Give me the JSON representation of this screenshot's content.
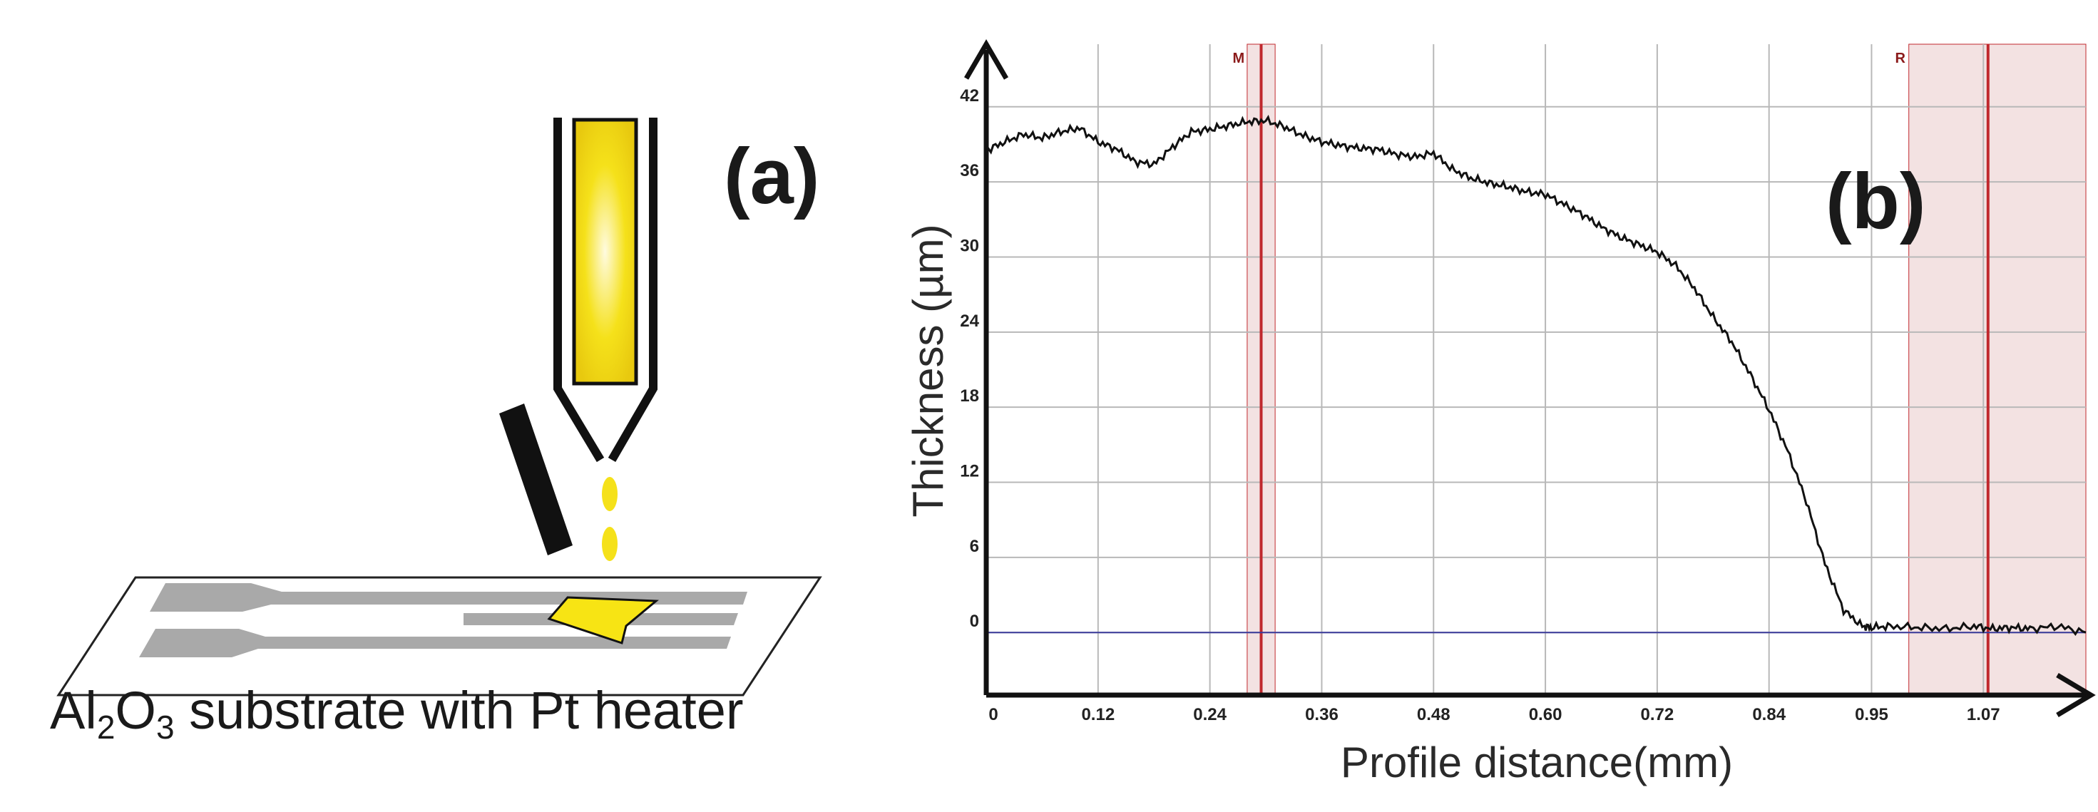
{
  "panel_a": {
    "label": "(a)",
    "caption_parts": [
      "Al",
      "2",
      "O",
      "3",
      " substrate with Pt heater"
    ]
  },
  "panel_b": {
    "label": "(b)"
  },
  "colors": {
    "profile": "#111111",
    "grid": "#b8b8b8",
    "baseline": "#3a3a9a",
    "marker_line": "#c0282d",
    "marker_band": "#f3e2e2",
    "lamp_yellow": "#f5e11a",
    "heater_grey": "#a9a9a9",
    "deposit_yellow": "#f7e414"
  },
  "chart_data": {
    "type": "line",
    "xlabel": "Profile distance(mm)",
    "ylabel": "Thickness (µm)",
    "x_ticks": [
      "0",
      "0.12",
      "0.24",
      "0.36",
      "0.48",
      "0.60",
      "0.72",
      "0.84",
      "0.95",
      "1.07"
    ],
    "y_ticks": [
      "0",
      "6",
      "12",
      "18",
      "24",
      "30",
      "36",
      "42"
    ],
    "xlim": [
      0,
      1.18
    ],
    "ylim": [
      -5,
      47
    ],
    "grid": true,
    "markers": [
      {
        "name": "M",
        "x": 0.295,
        "band": [
          0.28,
          0.31
        ]
      },
      {
        "name": "R",
        "x": 1.075,
        "band": [
          0.99,
          1.18
        ]
      }
    ],
    "series": [
      {
        "x": [
          0.0,
          0.02,
          0.04,
          0.06,
          0.08,
          0.1,
          0.12,
          0.14,
          0.16,
          0.18,
          0.2,
          0.22,
          0.24,
          0.26,
          0.28,
          0.3,
          0.32,
          0.34,
          0.36,
          0.38,
          0.4,
          0.42,
          0.44,
          0.46,
          0.48,
          0.5,
          0.52,
          0.54,
          0.56,
          0.58,
          0.6,
          0.62,
          0.64,
          0.66,
          0.68,
          0.7,
          0.72,
          0.74,
          0.76,
          0.78,
          0.8,
          0.82,
          0.84,
          0.86,
          0.88,
          0.9,
          0.92,
          0.94,
          0.95,
          0.97,
          1.0,
          1.03,
          1.06,
          1.08,
          1.1,
          1.12,
          1.15,
          1.18
        ],
        "y": [
          38.5,
          39.2,
          39.8,
          39.5,
          40.0,
          40.3,
          39.2,
          38.6,
          37.6,
          37.4,
          38.8,
          40.0,
          40.2,
          40.5,
          40.8,
          40.9,
          40.4,
          39.7,
          39.2,
          38.9,
          38.7,
          38.6,
          38.2,
          38.0,
          38.3,
          37.0,
          36.3,
          35.9,
          35.6,
          35.2,
          35.0,
          34.2,
          33.4,
          32.4,
          31.6,
          31.0,
          30.4,
          29.3,
          27.5,
          25.2,
          23.2,
          20.6,
          17.8,
          14.5,
          10.5,
          5.5,
          1.8,
          0.5,
          0.4,
          0.5,
          0.4,
          0.3,
          0.5,
          0.3,
          0.4,
          0.3,
          0.5,
          0.0
        ]
      }
    ]
  }
}
